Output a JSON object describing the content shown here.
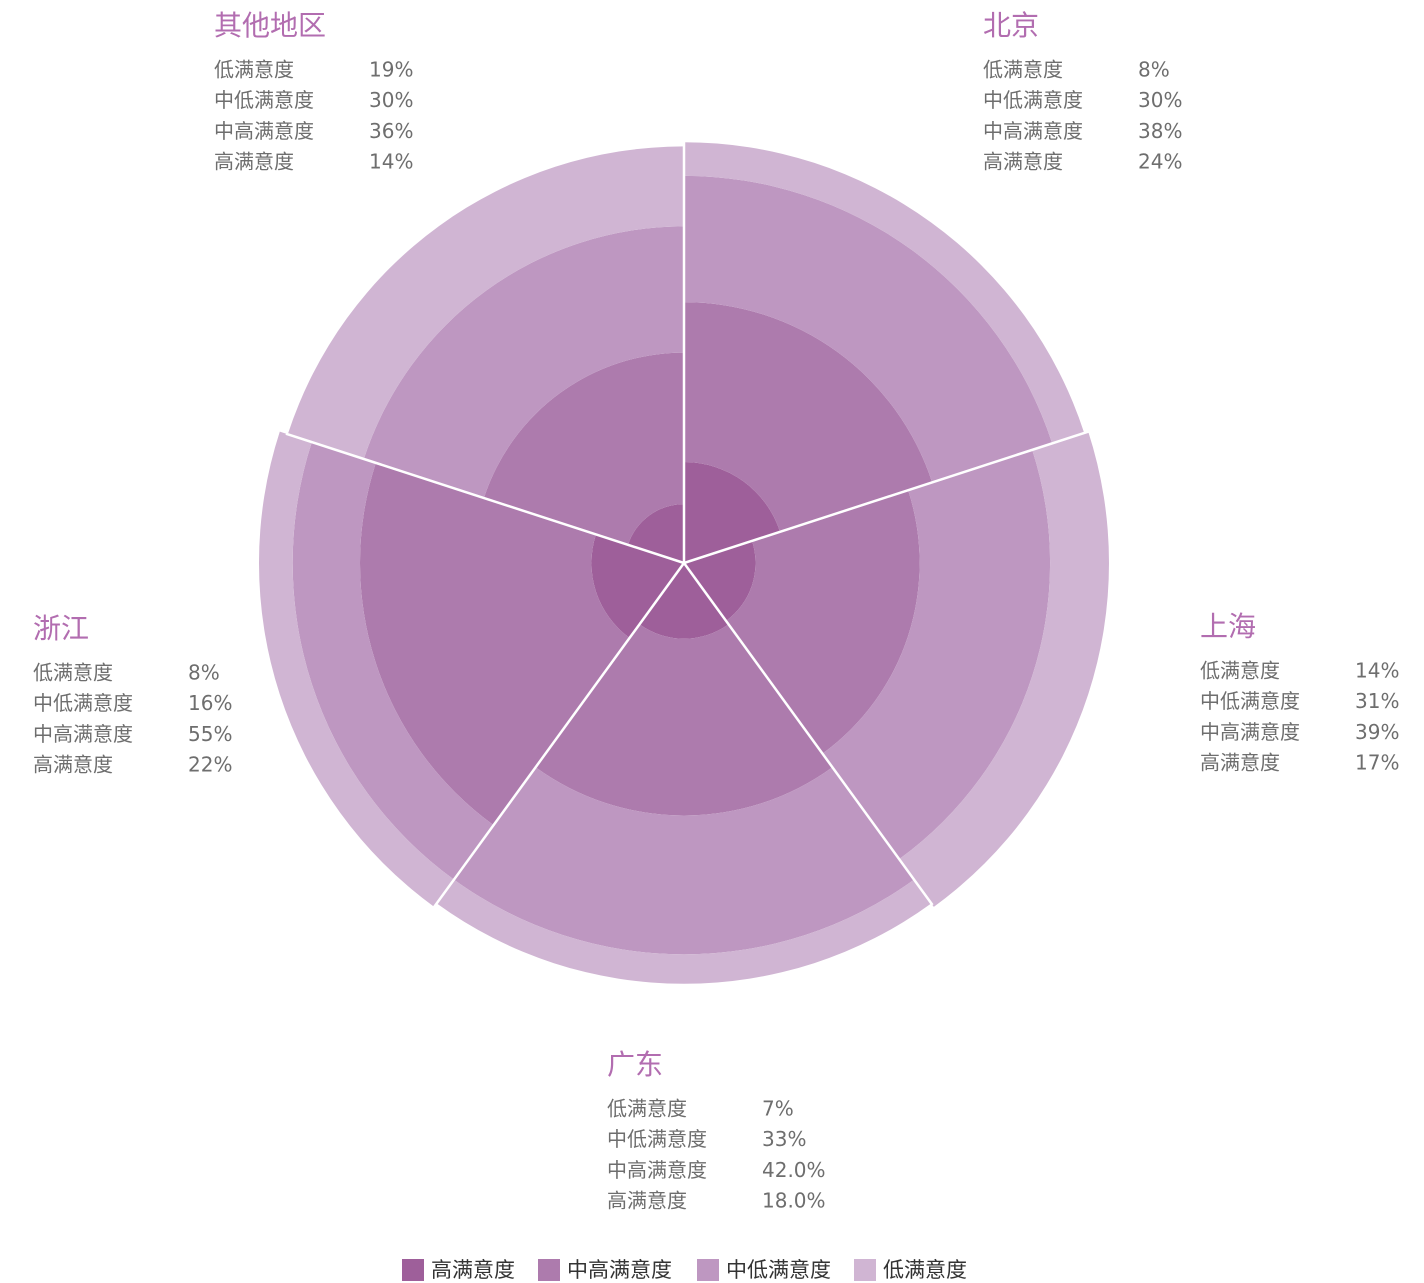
{
  "chart_data": {
    "type": "polar-stacked",
    "categories": [
      "北京",
      "上海",
      "广东",
      "浙江",
      "其他地区"
    ],
    "series": [
      {
        "name": "高满意度",
        "color": "#9e5f9a",
        "values": [
          24,
          17,
          18,
          22,
          14
        ],
        "value_labels": [
          "24%",
          "17%",
          "18.0%",
          "22%",
          "14%"
        ]
      },
      {
        "name": "中高满意度",
        "color": "#ad7bad",
        "values": [
          38,
          39,
          42,
          55,
          36
        ],
        "value_labels": [
          "38%",
          "39%",
          "42.0%",
          "55%",
          "36%"
        ]
      },
      {
        "name": "中低满意度",
        "color": "#be97c1",
        "values": [
          30,
          31,
          33,
          16,
          30
        ],
        "value_labels": [
          "30%",
          "31%",
          "33%",
          "16%",
          "30%"
        ]
      },
      {
        "name": "低满意度",
        "color": "#d0b5d3",
        "values": [
          8,
          14,
          7,
          8,
          19
        ],
        "value_labels": [
          "8%",
          "14%",
          "7%",
          "8%",
          "19%"
        ]
      }
    ]
  }
}
